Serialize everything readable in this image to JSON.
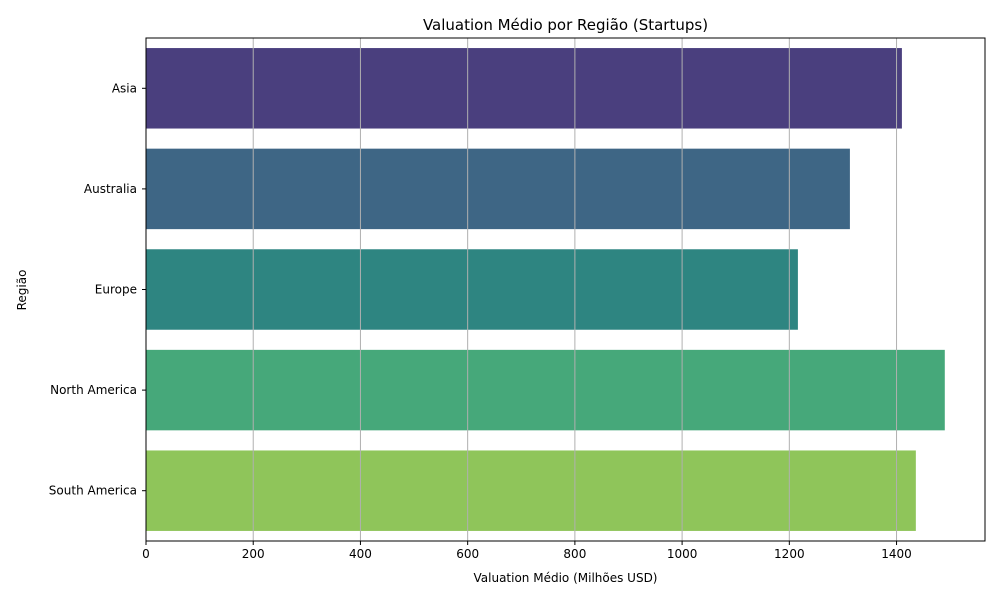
{
  "chart_data": {
    "type": "bar",
    "orientation": "horizontal",
    "title": "Valuation Médio por Região (Startups)",
    "xlabel": "Valuation Médio (Milhões USD)",
    "ylabel": "Região",
    "categories": [
      "Asia",
      "Australia",
      "Europe",
      "North America",
      "South America"
    ],
    "values": [
      1410,
      1313,
      1216,
      1490,
      1436
    ],
    "colors": [
      "#4a3f7e",
      "#3e6685",
      "#2e8581",
      "#46a87a",
      "#8fc55a"
    ],
    "xlim": [
      0,
      1565
    ],
    "xticks": [
      0,
      200,
      400,
      600,
      800,
      1000,
      1200,
      1400
    ],
    "xtick_labels": [
      "0",
      "200",
      "400",
      "600",
      "800",
      "1000",
      "1200",
      "1400"
    ],
    "grid": {
      "x": true,
      "y": false,
      "color": "#b0b0b0"
    }
  }
}
